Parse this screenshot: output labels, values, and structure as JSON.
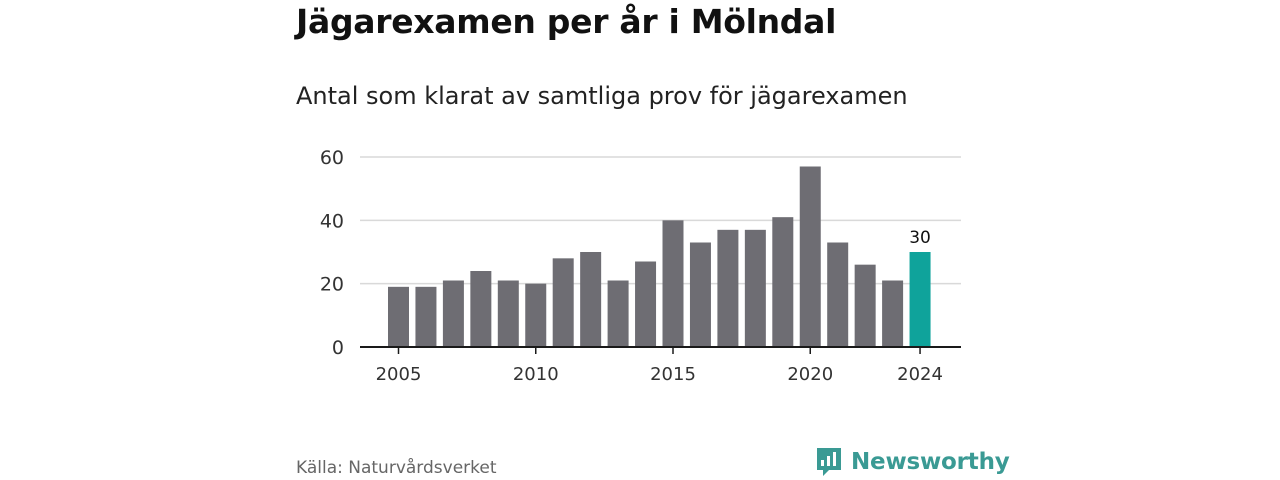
{
  "title": "Jägarexamen per år i Mölndal",
  "subtitle": "Antal som klarat av samtliga prov för jägarexamen",
  "source": "Källa: Naturvårdsverket",
  "brand": {
    "name": "Newsworthy",
    "color": "#3a9a94"
  },
  "colors": {
    "bar": "#6e6d73",
    "highlight": "#0fa39b",
    "grid": "#d9d9d9",
    "axis": "#1a1a1a"
  },
  "chart_data": {
    "type": "bar",
    "categories": [
      "2005",
      "2006",
      "2007",
      "2008",
      "2009",
      "2010",
      "2011",
      "2012",
      "2013",
      "2014",
      "2015",
      "2016",
      "2017",
      "2018",
      "2019",
      "2020",
      "2021",
      "2022",
      "2023",
      "2024"
    ],
    "values": [
      19,
      19,
      21,
      24,
      21,
      20,
      28,
      30,
      21,
      27,
      40,
      33,
      37,
      37,
      41,
      57,
      33,
      26,
      21,
      30
    ],
    "highlight_index": 19,
    "ylim": [
      0,
      60
    ],
    "yticks": [
      0,
      20,
      40,
      60
    ],
    "xticks": [
      "2005",
      "2010",
      "2015",
      "2020",
      "2024"
    ],
    "data_labels": [
      {
        "category": "2024",
        "text": "30"
      }
    ],
    "grid": true
  }
}
